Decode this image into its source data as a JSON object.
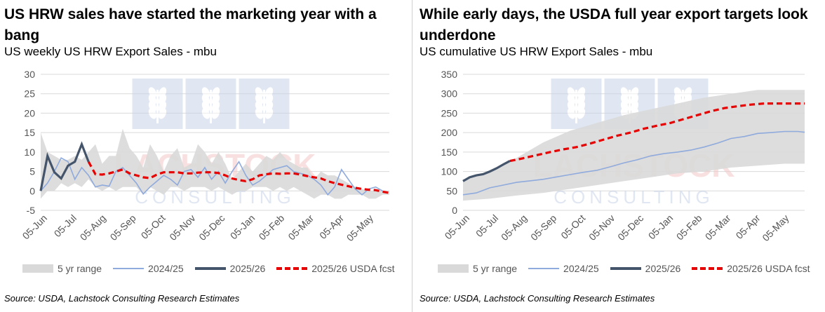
{
  "charts": [
    {
      "title": "US HRW sales have started the marketing year with a bang",
      "subtitle": "US weekly US HRW Export Sales - mbu",
      "source": "Source: USDA, Lachstock Consulting Research Estimates",
      "legend": [
        "5 yr range",
        "2024/25",
        "2025/26",
        "2025/26 USDA fcst"
      ],
      "watermark": {
        "brand": "LACHSTOCK",
        "line2": "CONSULTING"
      }
    },
    {
      "title": "While early days, the USDA full year export targets look underdone",
      "subtitle": "US cumulative US HRW Export Sales - mbu",
      "source": "Source: USDA, Lachstock Consulting Research Estimates",
      "legend": [
        "5 yr range",
        "2024/25",
        "2025/26",
        "2025/26 USDA fcst"
      ],
      "watermark": {
        "brand": "LACHSTOCK",
        "line2": "CONSULTING"
      }
    }
  ],
  "chart_data": [
    {
      "type": "line",
      "title": "US HRW sales have started the marketing year with a bang",
      "subtitle": "US weekly US HRW Export Sales - mbu",
      "ylim": [
        -5,
        30
      ],
      "yticks": [
        -5,
        0,
        5,
        10,
        15,
        20,
        25,
        30
      ],
      "grid": "horizontal",
      "legend_position": "bottom",
      "x_tick_labels": [
        "05-Jun",
        "05-Jul",
        "05-Aug",
        "05-Sep",
        "05-Oct",
        "05-Nov",
        "05-Dec",
        "05-Jan",
        "05-Feb",
        "05-Mar",
        "05-Apr",
        "05-May"
      ],
      "x_tick_weeks": [
        0,
        4.3,
        8.6,
        13,
        17.3,
        21.7,
        26,
        30.4,
        34.7,
        39,
        43.4,
        47.7
      ],
      "range": {
        "name": "5 yr range",
        "x": [
          0,
          1,
          2,
          3,
          4,
          5,
          6,
          7,
          8,
          9,
          10,
          11,
          12,
          13,
          14,
          15,
          16,
          17,
          18,
          19,
          20,
          21,
          22,
          23,
          24,
          25,
          26,
          27,
          28,
          29,
          30,
          31,
          32,
          33,
          34,
          35,
          36,
          37,
          38,
          39,
          40,
          41,
          42,
          43,
          44,
          45,
          46,
          47,
          48,
          49,
          50,
          51
        ],
        "upper": [
          15,
          10,
          9,
          8,
          8,
          9,
          8,
          10,
          12,
          7,
          9,
          9,
          16,
          11,
          9,
          6,
          12,
          9,
          5,
          9,
          11,
          6,
          7,
          12,
          10,
          7,
          10,
          7,
          3,
          5,
          7,
          5,
          7,
          9,
          8,
          10,
          8,
          7,
          6,
          6,
          3,
          5,
          4,
          4,
          3,
          2,
          1,
          0.5,
          0,
          0,
          0,
          0
        ],
        "lower": [
          -2,
          0,
          0,
          2,
          1,
          2,
          1,
          3,
          1,
          0,
          1,
          0,
          1,
          1,
          1,
          -1,
          1,
          0,
          -1,
          1,
          1,
          0,
          1,
          1,
          1,
          0,
          1,
          0,
          -1,
          0,
          0,
          1,
          1,
          1,
          0,
          1,
          0,
          1,
          0,
          -1,
          -2,
          -1,
          -1,
          -2,
          -2,
          -1,
          -1,
          -1,
          -2,
          -2,
          -1,
          -1
        ]
      },
      "series": [
        {
          "name": "2024/25",
          "x": [
            0,
            1,
            2,
            3,
            4,
            5,
            6,
            7,
            8,
            9,
            10,
            11,
            12,
            13,
            14,
            15,
            16,
            17,
            18,
            19,
            20,
            21,
            22,
            23,
            24,
            25,
            26,
            27,
            28,
            29,
            30,
            31,
            32,
            33,
            34,
            35,
            36,
            37,
            38,
            39,
            40,
            41,
            42,
            43,
            44,
            45,
            46,
            47,
            48,
            49,
            50
          ],
          "y": [
            0,
            2,
            5,
            8.5,
            7.5,
            3,
            6,
            4,
            1,
            1.5,
            1.2,
            5,
            6,
            4,
            2,
            -0.8,
            1,
            2.5,
            4,
            3,
            1.5,
            5,
            5.5,
            3.5,
            6,
            3,
            5,
            2,
            5,
            7.5,
            4,
            1.5,
            2.5,
            4,
            5.5,
            6,
            6.5,
            5,
            4.5,
            4,
            3,
            1.5,
            -1,
            1,
            5.5,
            3,
            0.5,
            -1,
            0.5,
            1,
            0
          ]
        },
        {
          "name": "2025/26",
          "x": [
            0,
            1,
            2,
            3,
            4,
            5,
            6,
            7
          ],
          "y": [
            0,
            9,
            4.8,
            3.2,
            6.5,
            7.5,
            12,
            7.5
          ]
        },
        {
          "name": "2025/26 USDA fcst",
          "x": [
            7,
            8,
            9,
            10,
            11,
            12,
            13,
            14,
            15,
            16,
            17,
            18,
            19,
            20,
            21,
            22,
            23,
            24,
            25,
            26,
            27,
            28,
            29,
            30,
            31,
            32,
            33,
            34,
            35,
            36,
            37,
            38,
            39,
            40,
            41,
            42,
            43,
            44,
            45,
            46,
            47,
            48,
            49,
            50,
            51
          ],
          "y": [
            7.5,
            4.3,
            4.2,
            4.5,
            5,
            5.5,
            4.5,
            4,
            3.5,
            3.3,
            4.2,
            4.8,
            4.8,
            4.8,
            4.5,
            4.5,
            4.7,
            4.8,
            4.8,
            4.6,
            4,
            3.2,
            2.8,
            2.5,
            3,
            4,
            4.3,
            4.5,
            4.4,
            4.5,
            4.5,
            4.2,
            3.8,
            3.5,
            3.2,
            2.5,
            2,
            1.6,
            1.2,
            0.8,
            0.5,
            0.3,
            0.2,
            -0.2,
            -0.5
          ]
        }
      ]
    },
    {
      "type": "line",
      "title": "While early days, the USDA full year export targets look underdone",
      "subtitle": "US cumulative US HRW Export Sales - mbu",
      "ylim": [
        0,
        350
      ],
      "yticks": [
        0,
        50,
        100,
        150,
        200,
        250,
        300,
        350
      ],
      "grid": "horizontal",
      "legend_position": "bottom",
      "x_tick_labels": [
        "05-Jun",
        "05-Jul",
        "05-Aug",
        "05-Sep",
        "05-Oct",
        "05-Nov",
        "05-Dec",
        "05-Jan",
        "05-Feb",
        "05-Mar",
        "05-Apr",
        "05-May"
      ],
      "x_tick_weeks": [
        0,
        4.3,
        8.6,
        13,
        17.3,
        21.7,
        26,
        30.4,
        34.7,
        39,
        43.4,
        47.7
      ],
      "range": {
        "name": "5 yr range",
        "x": [
          0,
          4,
          8,
          12,
          16,
          20,
          24,
          28,
          32,
          36,
          40,
          44,
          48,
          51
        ],
        "upper": [
          80,
          100,
          135,
          175,
          205,
          225,
          245,
          260,
          275,
          290,
          300,
          310,
          310,
          310
        ],
        "lower": [
          25,
          30,
          38,
          45,
          55,
          65,
          75,
          85,
          95,
          100,
          110,
          115,
          120,
          120
        ]
      },
      "series": [
        {
          "name": "2024/25",
          "x": [
            0,
            2,
            4,
            6,
            8,
            10,
            12,
            14,
            16,
            18,
            20,
            22,
            24,
            26,
            28,
            30,
            32,
            34,
            36,
            38,
            40,
            42,
            44,
            46,
            48,
            50,
            51
          ],
          "y": [
            40,
            45,
            58,
            65,
            72,
            76,
            80,
            86,
            92,
            98,
            103,
            112,
            122,
            130,
            140,
            146,
            150,
            155,
            163,
            173,
            185,
            190,
            198,
            200,
            203,
            203,
            201
          ]
        },
        {
          "name": "2025/26",
          "x": [
            0,
            1,
            2,
            3,
            4,
            5,
            6,
            7
          ],
          "y": [
            75,
            85,
            90,
            93,
            100,
            108,
            118,
            127
          ]
        },
        {
          "name": "2025/26 USDA fcst",
          "x": [
            7,
            9,
            11,
            13,
            15,
            17,
            19,
            21,
            23,
            25,
            27,
            29,
            31,
            33,
            35,
            37,
            39,
            41,
            43,
            45,
            47,
            49,
            51
          ],
          "y": [
            127,
            134,
            142,
            150,
            157,
            163,
            172,
            182,
            192,
            200,
            210,
            218,
            225,
            235,
            245,
            255,
            263,
            268,
            272,
            275,
            275,
            275,
            275
          ]
        }
      ]
    }
  ]
}
